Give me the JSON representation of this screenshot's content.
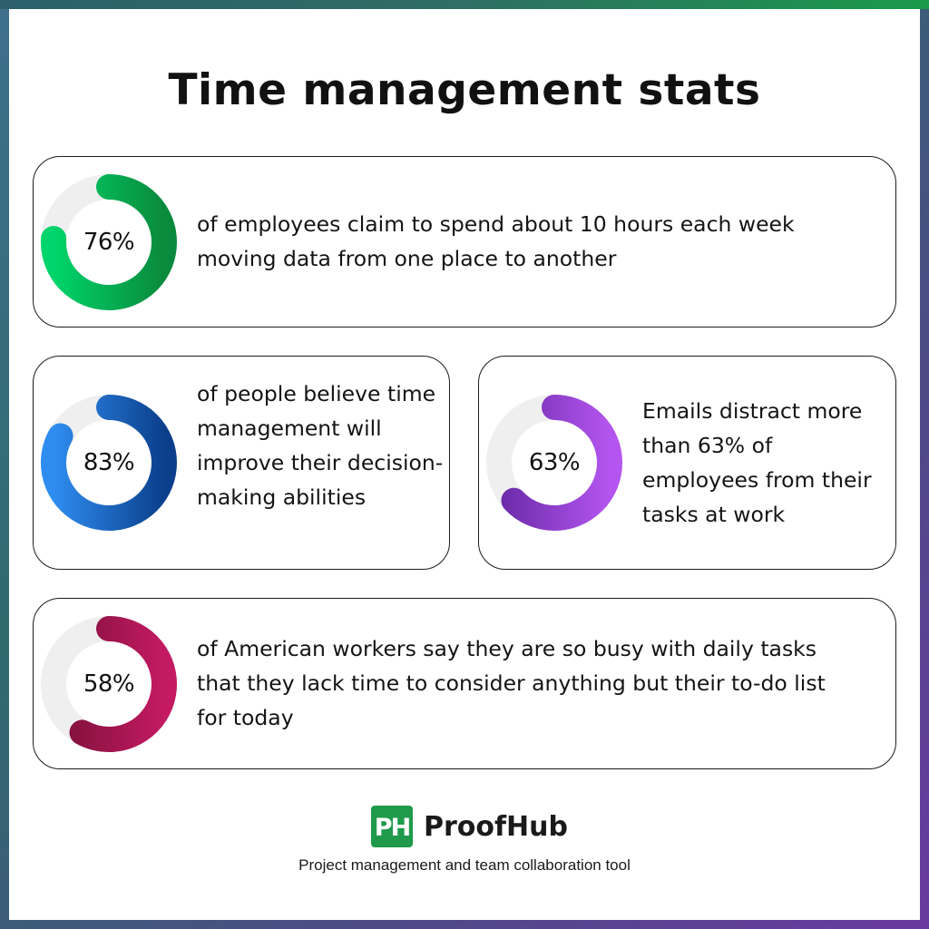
{
  "title": "Time management stats",
  "chart_data": [
    {
      "type": "pie",
      "value_percent": 76,
      "label": "76%",
      "description": "of employees claim to spend about 10 hours each week moving data from one place to another",
      "colors": [
        "#00d46a",
        "#0a8a3c"
      ]
    },
    {
      "type": "pie",
      "value_percent": 83,
      "label": "83%",
      "description": "of people believe time management will improve their decision-making abilities",
      "colors": [
        "#2f8df0",
        "#0b3f8c"
      ]
    },
    {
      "type": "pie",
      "value_percent": 63,
      "label": "63%",
      "description": "Emails distract more than 63% of employees from their tasks at work",
      "colors": [
        "#6a2aa8",
        "#b455f0"
      ]
    },
    {
      "type": "pie",
      "value_percent": 58,
      "label": "58%",
      "description": "of American workers say they are so busy with daily tasks that they lack time to consider anything but their to-do list for today",
      "colors": [
        "#7a1038",
        "#c41a62"
      ]
    }
  ],
  "footer": {
    "logo_mark": "PH",
    "brand": "ProofHub",
    "tagline": "Project management and team collaboration tool",
    "brand_color": "#1f9a4b"
  },
  "colors": {
    "track": "#efefef",
    "card_border": "#1c1c1c"
  }
}
